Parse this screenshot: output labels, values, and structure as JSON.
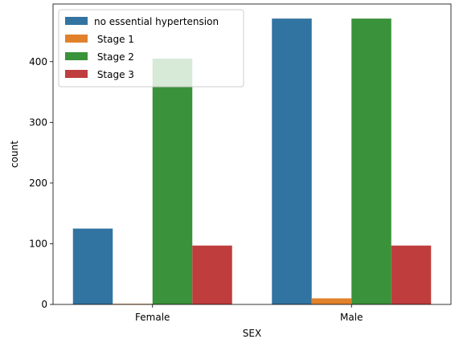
{
  "chart_data": {
    "type": "bar",
    "categories": [
      "Female",
      "Male"
    ],
    "series": [
      {
        "name": "no essential hypertension",
        "color": "#3274a1",
        "values": [
          125,
          471
        ]
      },
      {
        "name": " Stage 1",
        "color": "#e1812c",
        "values": [
          1,
          10
        ]
      },
      {
        "name": " Stage 2",
        "color": "#3a923a",
        "values": [
          405,
          471
        ]
      },
      {
        "name": " Stage 3",
        "color": "#c03d3e",
        "values": [
          97,
          97
        ]
      }
    ],
    "xlabel": "SEX",
    "ylabel": "count",
    "ylim": [
      0,
      495
    ],
    "yticks": [
      0,
      100,
      200,
      300,
      400
    ],
    "legend": "top-left",
    "grid": false
  }
}
